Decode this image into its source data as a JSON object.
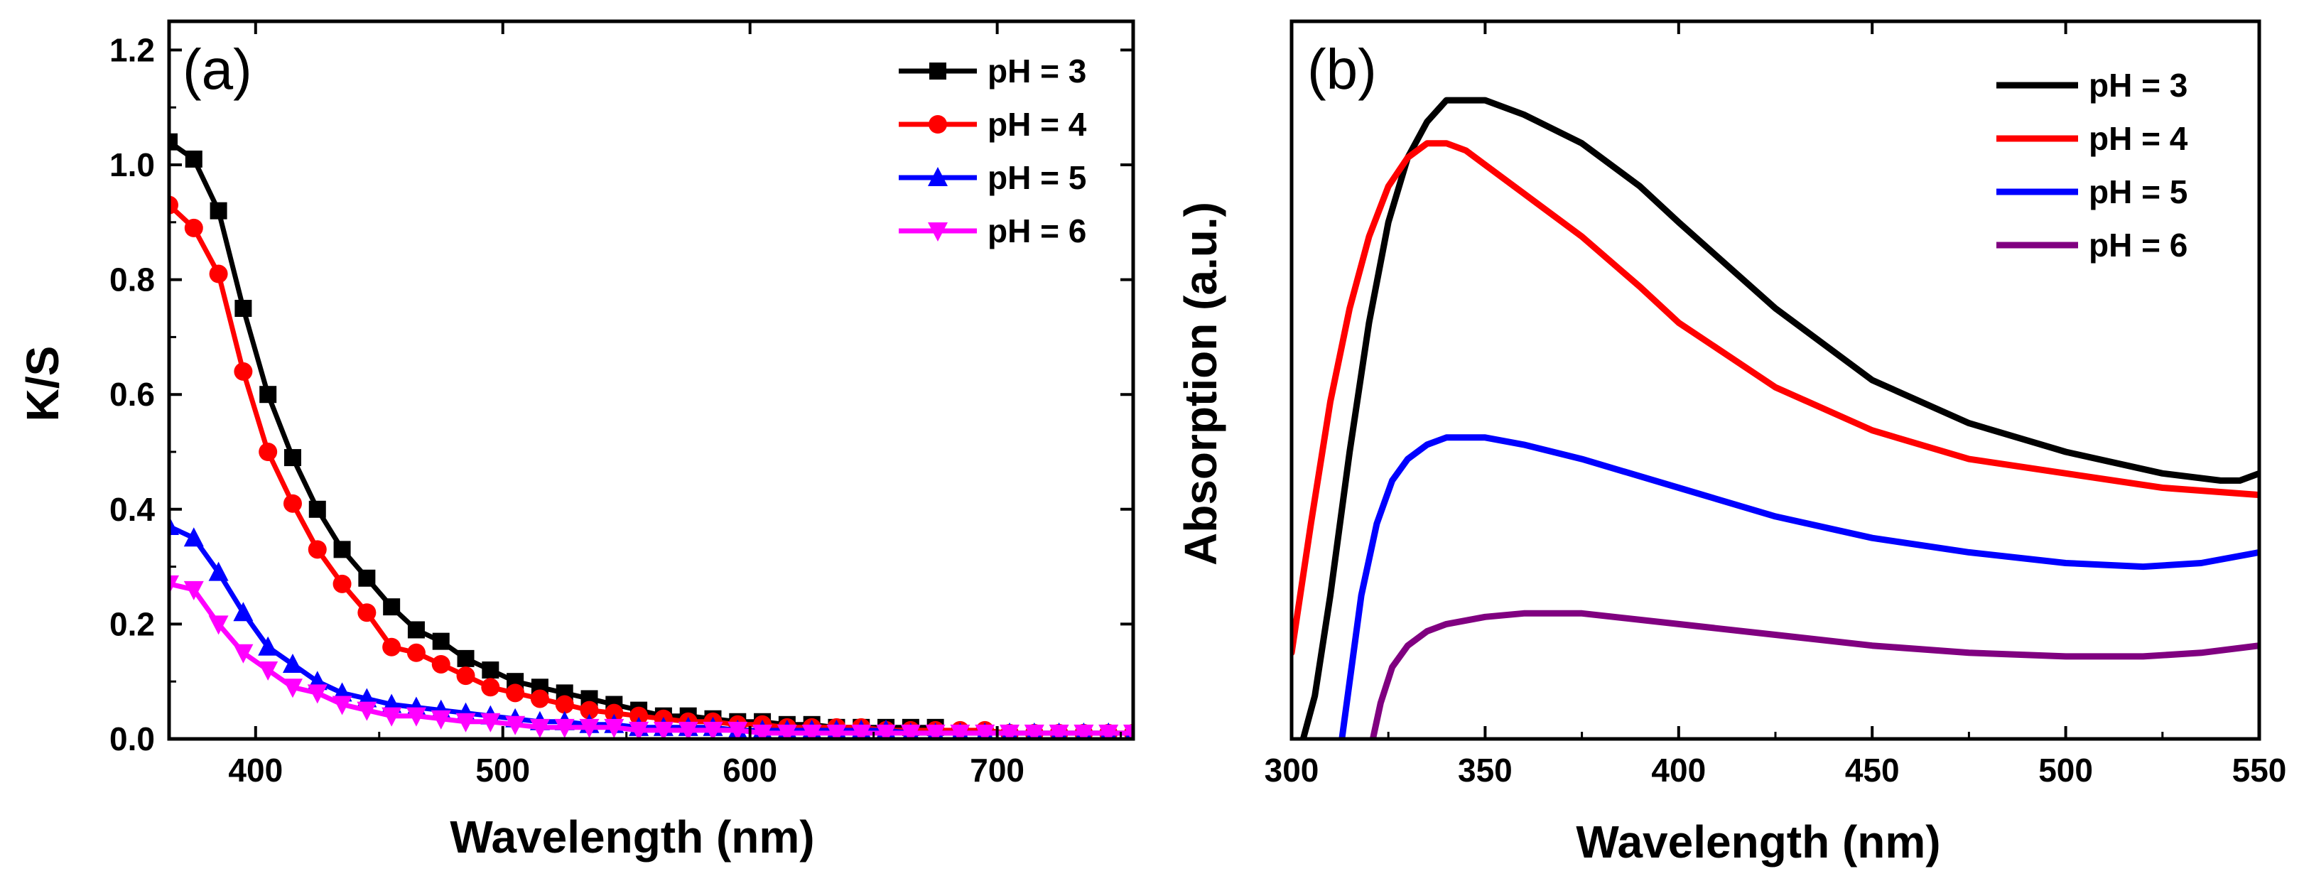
{
  "chart_data": [
    {
      "type": "line",
      "panel_label": "(a)",
      "xlabel": "Wavelength (nm)",
      "ylabel": "K/S",
      "xlim": [
        365,
        755
      ],
      "ylim": [
        0,
        1.25
      ],
      "xticks": [
        400,
        500,
        600,
        700
      ],
      "yticks": [
        0.0,
        0.2,
        0.4,
        0.6,
        0.8,
        1.0,
        1.2
      ],
      "ytick_labels": [
        "0.0",
        "0.2",
        "0.4",
        "0.6",
        "0.8",
        "1.0",
        "1.2"
      ],
      "x": [
        365,
        375,
        385,
        395,
        405,
        415,
        425,
        435,
        445,
        455,
        465,
        475,
        485,
        495,
        505,
        515,
        525,
        535,
        545,
        555,
        565,
        575,
        585,
        595,
        605,
        615,
        625,
        635,
        645,
        655,
        665,
        675,
        685,
        695,
        705,
        715,
        725,
        735,
        745,
        755
      ],
      "legend": "top-right",
      "series": [
        {
          "name": "pH = 3",
          "color": "#000000",
          "marker": "square",
          "x": [
            365,
            375,
            385,
            395,
            405,
            415,
            425,
            435,
            445,
            455,
            465,
            475,
            485,
            495,
            505,
            515,
            525,
            535,
            545,
            555,
            565,
            575,
            585,
            595,
            605,
            615,
            625,
            635,
            645,
            655,
            665,
            675
          ],
          "values": [
            1.04,
            1.01,
            0.92,
            0.75,
            0.6,
            0.49,
            0.4,
            0.33,
            0.28,
            0.23,
            0.19,
            0.17,
            0.14,
            0.12,
            0.1,
            0.09,
            0.08,
            0.07,
            0.06,
            0.05,
            0.04,
            0.04,
            0.035,
            0.03,
            0.03,
            0.025,
            0.025,
            0.02,
            0.02,
            0.02,
            0.02,
            0.02
          ]
        },
        {
          "name": "pH = 4",
          "color": "#ff0000",
          "marker": "circle",
          "x": [
            365,
            375,
            385,
            395,
            405,
            415,
            425,
            435,
            445,
            455,
            465,
            475,
            485,
            495,
            505,
            515,
            525,
            535,
            545,
            555,
            565,
            575,
            585,
            595,
            605,
            615,
            625,
            635,
            645,
            655,
            665,
            675,
            685,
            695,
            705,
            715,
            725,
            735,
            745,
            755
          ],
          "values": [
            0.93,
            0.89,
            0.81,
            0.64,
            0.5,
            0.41,
            0.33,
            0.27,
            0.22,
            0.16,
            0.15,
            0.13,
            0.11,
            0.09,
            0.08,
            0.07,
            0.06,
            0.05,
            0.045,
            0.04,
            0.035,
            0.03,
            0.03,
            0.025,
            0.025,
            0.02,
            0.02,
            0.02,
            0.02,
            0.015,
            0.015,
            0.015,
            0.015,
            0.015,
            0.01,
            0.01,
            0.01,
            0.01,
            0.01,
            0.01
          ]
        },
        {
          "name": "pH = 5",
          "color": "#0000ff",
          "marker": "triangle-up",
          "x": [
            365,
            375,
            385,
            395,
            405,
            415,
            425,
            435,
            445,
            455,
            465,
            475,
            485,
            495,
            505,
            515,
            525,
            535,
            545,
            555,
            565,
            575,
            585,
            595,
            605,
            615,
            625,
            635,
            645,
            655,
            665,
            675,
            685,
            695,
            705,
            715,
            725,
            735,
            745,
            755
          ],
          "values": [
            0.37,
            0.35,
            0.29,
            0.22,
            0.16,
            0.13,
            0.1,
            0.08,
            0.07,
            0.06,
            0.055,
            0.05,
            0.045,
            0.04,
            0.035,
            0.03,
            0.03,
            0.025,
            0.025,
            0.02,
            0.02,
            0.02,
            0.02,
            0.015,
            0.015,
            0.015,
            0.015,
            0.015,
            0.015,
            0.015,
            0.01,
            0.01,
            0.01,
            0.01,
            0.01,
            0.01,
            0.01,
            0.01,
            0.01,
            0.01
          ]
        },
        {
          "name": "pH = 6",
          "color": "#ff00ff",
          "marker": "triangle-down",
          "x": [
            365,
            375,
            385,
            395,
            405,
            415,
            425,
            435,
            445,
            455,
            465,
            475,
            485,
            495,
            505,
            515,
            525,
            535,
            545,
            555,
            565,
            575,
            585,
            595,
            605,
            615,
            625,
            635,
            645,
            655,
            665,
            675,
            685,
            695,
            705,
            715,
            725,
            735,
            745,
            755
          ],
          "values": [
            0.27,
            0.26,
            0.2,
            0.15,
            0.12,
            0.09,
            0.08,
            0.06,
            0.05,
            0.04,
            0.04,
            0.035,
            0.03,
            0.03,
            0.025,
            0.02,
            0.02,
            0.02,
            0.02,
            0.015,
            0.015,
            0.015,
            0.015,
            0.015,
            0.01,
            0.01,
            0.01,
            0.01,
            0.01,
            0.01,
            0.01,
            0.01,
            0.01,
            0.01,
            0.01,
            0.01,
            0.01,
            0.01,
            0.01,
            0.01
          ]
        }
      ]
    },
    {
      "type": "line",
      "panel_label": "(b)",
      "xlabel": "Wavelength (nm)",
      "ylabel": "Absorption (a.u.)",
      "xlim": [
        300,
        550
      ],
      "ylim": [
        0,
        1.0
      ],
      "xticks": [
        300,
        350,
        400,
        450,
        500,
        550
      ],
      "yticks": [],
      "legend": "top-right",
      "series": [
        {
          "name": "pH = 3",
          "color": "#000000",
          "x": [
            303,
            306,
            310,
            315,
            320,
            325,
            330,
            335,
            340,
            345,
            350,
            360,
            375,
            390,
            400,
            425,
            450,
            475,
            500,
            525,
            540,
            545,
            550
          ],
          "values": [
            0.0,
            0.06,
            0.2,
            0.4,
            0.58,
            0.72,
            0.81,
            0.86,
            0.89,
            0.89,
            0.89,
            0.87,
            0.83,
            0.77,
            0.72,
            0.6,
            0.5,
            0.44,
            0.4,
            0.37,
            0.36,
            0.36,
            0.37
          ]
        },
        {
          "name": "pH = 4",
          "color": "#ff0000",
          "x": [
            300,
            305,
            310,
            315,
            320,
            325,
            330,
            335,
            340,
            345,
            350,
            360,
            375,
            390,
            400,
            425,
            450,
            475,
            500,
            525,
            550
          ],
          "values": [
            0.12,
            0.3,
            0.47,
            0.6,
            0.7,
            0.77,
            0.81,
            0.83,
            0.83,
            0.82,
            0.8,
            0.76,
            0.7,
            0.63,
            0.58,
            0.49,
            0.43,
            0.39,
            0.37,
            0.35,
            0.34
          ]
        },
        {
          "name": "pH = 5",
          "color": "#0000ff",
          "x": [
            313,
            315,
            318,
            322,
            326,
            330,
            335,
            340,
            345,
            350,
            360,
            375,
            400,
            425,
            450,
            475,
            500,
            520,
            535,
            550
          ],
          "values": [
            0.0,
            0.08,
            0.2,
            0.3,
            0.36,
            0.39,
            0.41,
            0.42,
            0.42,
            0.42,
            0.41,
            0.39,
            0.35,
            0.31,
            0.28,
            0.26,
            0.245,
            0.24,
            0.245,
            0.26
          ]
        },
        {
          "name": "pH = 6",
          "color": "#800080",
          "x": [
            321,
            323,
            326,
            330,
            335,
            340,
            350,
            360,
            375,
            400,
            425,
            450,
            475,
            500,
            520,
            535,
            550
          ],
          "values": [
            0.0,
            0.05,
            0.1,
            0.13,
            0.15,
            0.16,
            0.17,
            0.175,
            0.175,
            0.16,
            0.145,
            0.13,
            0.12,
            0.115,
            0.115,
            0.12,
            0.13
          ]
        }
      ]
    }
  ]
}
